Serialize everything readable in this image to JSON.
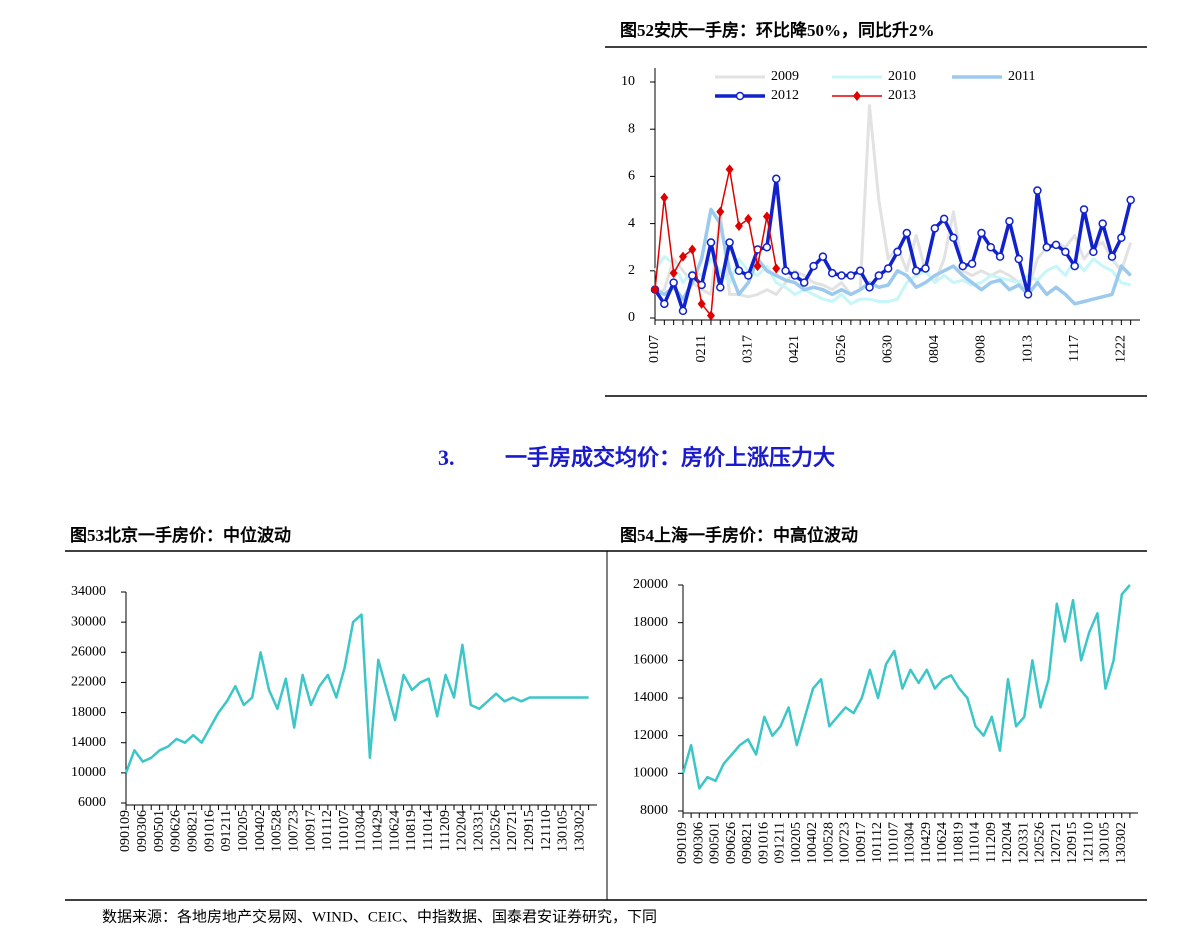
{
  "chart_data": [
    {
      "type": "line",
      "title": "图52安庆一手房：环比降50%，同比升2%",
      "categories": [
        "0107",
        null,
        null,
        null,
        null,
        "0211",
        null,
        null,
        null,
        null,
        "0317",
        null,
        null,
        null,
        null,
        "0421",
        null,
        null,
        null,
        null,
        "0526",
        null,
        null,
        null,
        null,
        "0630",
        null,
        null,
        null,
        null,
        "0804",
        null,
        null,
        null,
        null,
        "0908",
        null,
        null,
        null,
        null,
        "1013",
        null,
        null,
        null,
        null,
        "1117",
        null,
        null,
        null,
        null,
        "1222",
        null
      ],
      "ylim": [
        0,
        10
      ],
      "yticks": [
        0,
        2,
        4,
        6,
        8,
        10
      ],
      "legend": "top",
      "series": [
        {
          "name": "2009",
          "color": "#e2e2e2",
          "values": [
            1.0,
            1.2,
            2.5,
            2.0,
            1.5,
            1.2,
            1.0,
            4.5,
            1.0,
            1.0,
            0.9,
            1.0,
            1.2,
            1.0,
            1.5,
            2.0,
            1.8,
            1.5,
            1.4,
            1.2,
            1.5,
            1.0,
            1.2,
            9.0,
            5.0,
            2.5,
            3.0,
            2.0,
            3.5,
            2.0,
            1.5,
            2.5,
            4.5,
            2.0,
            1.8,
            2.0,
            1.8,
            2.0,
            1.8,
            1.5,
            1.2,
            2.5,
            3.0,
            3.2,
            3.0,
            3.5,
            2.5,
            3.0,
            3.2,
            2.5,
            2.0,
            3.2
          ]
        },
        {
          "name": "2010",
          "color": "#c6f6f8",
          "values": [
            2.0,
            2.6,
            2.3,
            1.5,
            2.0,
            1.8,
            2.5,
            2.0,
            1.5,
            2.5,
            2.0,
            1.8,
            2.2,
            1.5,
            1.3,
            1.0,
            1.2,
            1.0,
            0.8,
            0.7,
            1.0,
            0.6,
            0.8,
            0.8,
            0.7,
            0.7,
            0.8,
            1.5,
            1.8,
            2.0,
            1.5,
            1.8,
            1.5,
            1.6,
            1.4,
            1.5,
            1.8,
            1.7,
            1.6,
            1.5,
            1.8,
            1.6,
            2.0,
            2.2,
            1.8,
            2.5,
            2.0,
            2.5,
            2.2,
            2.0,
            1.5,
            1.4
          ]
        },
        {
          "name": "2011",
          "color": "#9ccaee",
          "values": [
            1.2,
            1.0,
            1.3,
            0.8,
            1.5,
            2.5,
            4.6,
            4.0,
            2.0,
            1.0,
            1.5,
            2.5,
            2.0,
            1.8,
            1.6,
            1.5,
            1.2,
            1.3,
            1.2,
            1.0,
            1.2,
            1.0,
            1.2,
            1.5,
            1.3,
            1.4,
            2.0,
            1.8,
            1.3,
            1.5,
            1.8,
            2.0,
            2.2,
            1.8,
            1.5,
            1.2,
            1.5,
            1.6,
            1.2,
            1.4,
            1.0,
            1.5,
            1.0,
            1.3,
            1.0,
            0.6,
            0.7,
            0.8,
            0.9,
            1.0,
            2.2,
            1.8
          ]
        },
        {
          "name": "2012",
          "color": "#1122cc",
          "marker": "circle",
          "values": [
            1.2,
            0.6,
            1.5,
            0.3,
            1.8,
            1.4,
            3.2,
            1.3,
            3.2,
            2.0,
            1.8,
            2.9,
            3.0,
            5.9,
            2.0,
            1.8,
            1.5,
            2.2,
            2.6,
            1.9,
            1.8,
            1.8,
            2.0,
            1.3,
            1.8,
            2.1,
            2.8,
            3.6,
            2.0,
            2.1,
            3.8,
            4.2,
            3.4,
            2.2,
            2.3,
            3.6,
            3.0,
            2.6,
            4.1,
            2.5,
            1.0,
            5.4,
            3.0,
            3.1,
            2.8,
            2.2,
            4.6,
            2.8,
            4.0,
            2.6,
            3.4,
            5.0
          ]
        },
        {
          "name": "2013",
          "color": "#e00000",
          "marker": "diamond",
          "values": [
            1.2,
            5.1,
            1.9,
            2.6,
            2.9,
            0.6,
            0.1,
            4.5,
            6.3,
            3.9,
            4.2,
            2.2,
            4.3,
            2.1,
            null,
            null,
            null,
            null,
            null,
            null,
            null,
            null,
            null,
            null,
            null,
            null,
            null,
            null,
            null,
            null,
            null,
            null,
            null,
            null,
            null,
            null,
            null,
            null,
            null,
            null,
            null,
            null,
            null,
            null,
            null,
            null,
            null,
            null,
            null,
            null,
            null,
            null
          ]
        }
      ]
    },
    {
      "type": "line",
      "title": "图53北京一手房价：中位波动",
      "categories": [
        "090109",
        null,
        "090306",
        null,
        "090501",
        null,
        "090626",
        null,
        "090821",
        null,
        "091016",
        null,
        "091211",
        null,
        "100205",
        null,
        "100402",
        null,
        "100528",
        null,
        "100723",
        null,
        "100917",
        null,
        "101112",
        null,
        "110107",
        null,
        "110304",
        null,
        "110429",
        null,
        "110624",
        null,
        "110819",
        null,
        "111014",
        null,
        "111209",
        null,
        "120204",
        null,
        "120331",
        null,
        "120526",
        null,
        "120721",
        null,
        "120915",
        null,
        "121110",
        null,
        "130105",
        null,
        "130302",
        null
      ],
      "ylim": [
        6000,
        34000
      ],
      "yticks": [
        6000,
        10000,
        14000,
        18000,
        22000,
        26000,
        30000,
        34000
      ],
      "series": [
        {
          "color": "#3cc6c8",
          "values": [
            10000,
            13000,
            11500,
            12000,
            13000,
            13500,
            14500,
            14000,
            15000,
            14000,
            16000,
            18000,
            19500,
            21500,
            19000,
            20000,
            26000,
            21000,
            18500,
            22500,
            16000,
            23000,
            19000,
            21500,
            23000,
            20000,
            24000,
            30000,
            31000,
            12000,
            25000,
            21000,
            17000,
            23000,
            21000,
            22000,
            22500,
            17500,
            23000,
            20000,
            27000,
            19000,
            18500,
            19500,
            20500,
            19500,
            20000,
            19500,
            20000,
            20000,
            20000,
            20000,
            20000,
            20000,
            20000,
            20000
          ]
        }
      ]
    },
    {
      "type": "line",
      "title": "图54上海一手房价：中高位波动",
      "categories": [
        "090109",
        null,
        "090306",
        null,
        "090501",
        null,
        "090626",
        null,
        "090821",
        null,
        "091016",
        null,
        "091211",
        null,
        "100205",
        null,
        "100402",
        null,
        "100528",
        null,
        "100723",
        null,
        "100917",
        null,
        "101112",
        null,
        "110107",
        null,
        "110304",
        null,
        "110429",
        null,
        "110624",
        null,
        "110819",
        null,
        "111014",
        null,
        "111209",
        null,
        "120204",
        null,
        "120331",
        null,
        "120526",
        null,
        "120721",
        null,
        "120915",
        null,
        "121110",
        null,
        "130105",
        null,
        "130302",
        null
      ],
      "ylim": [
        8000,
        20000
      ],
      "yticks": [
        8000,
        10000,
        12000,
        14000,
        16000,
        18000,
        20000
      ],
      "series": [
        {
          "color": "#3cc6c8",
          "values": [
            10000,
            11500,
            9200,
            9800,
            9600,
            10500,
            11000,
            11500,
            11800,
            11000,
            13000,
            12000,
            12500,
            13500,
            11500,
            13000,
            14500,
            15000,
            12500,
            13000,
            13500,
            13200,
            14000,
            15500,
            14000,
            15800,
            16500,
            14500,
            15500,
            14800,
            15500,
            14500,
            15000,
            15200,
            14500,
            14000,
            12500,
            12000,
            13000,
            11200,
            15000,
            12500,
            13000,
            16000,
            13500,
            15000,
            19000,
            17000,
            19200,
            16000,
            17500,
            18500,
            14500,
            16000,
            19500,
            20000
          ]
        }
      ]
    }
  ],
  "section_heading": {
    "number": "3.",
    "text": "一手房成交均价：房价上涨压力大"
  },
  "source": "数据来源：各地房地产交易网、WIND、CEIC、中指数据、国泰君安证券研究，下同"
}
